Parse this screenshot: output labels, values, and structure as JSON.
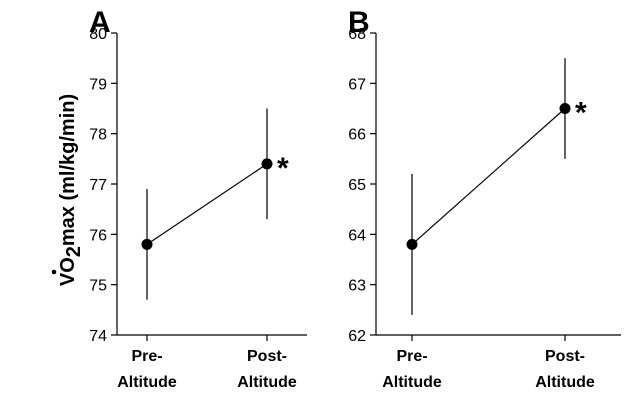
{
  "ylabel": "VO2max (ml/kg/min)",
  "ylabel_main": "VO",
  "ylabel_sub": "2",
  "ylabel_rest": "max (ml/kg/min)",
  "chart_data": [
    {
      "type": "line",
      "panel": "A",
      "categories": [
        [
          "Pre-",
          "Altitude"
        ],
        [
          "Post-",
          "Altitude"
        ]
      ],
      "values": [
        75.8,
        77.4
      ],
      "error": [
        1.1,
        1.1
      ],
      "significance": [
        "",
        "*"
      ],
      "ylim": [
        74,
        80
      ],
      "yticks": [
        74,
        75,
        76,
        77,
        78,
        79,
        80
      ],
      "ylabel": "VO2max (ml/kg/min)",
      "grid": false
    },
    {
      "type": "line",
      "panel": "B",
      "categories": [
        [
          "Pre-",
          "Altitude"
        ],
        [
          "Post-",
          "Altitude"
        ]
      ],
      "values": [
        63.8,
        66.5
      ],
      "error": [
        1.4,
        1.0
      ],
      "significance": [
        "",
        "*"
      ],
      "ylim": [
        62,
        68
      ],
      "yticks": [
        62,
        63,
        64,
        65,
        66,
        67,
        68
      ],
      "grid": false
    }
  ]
}
